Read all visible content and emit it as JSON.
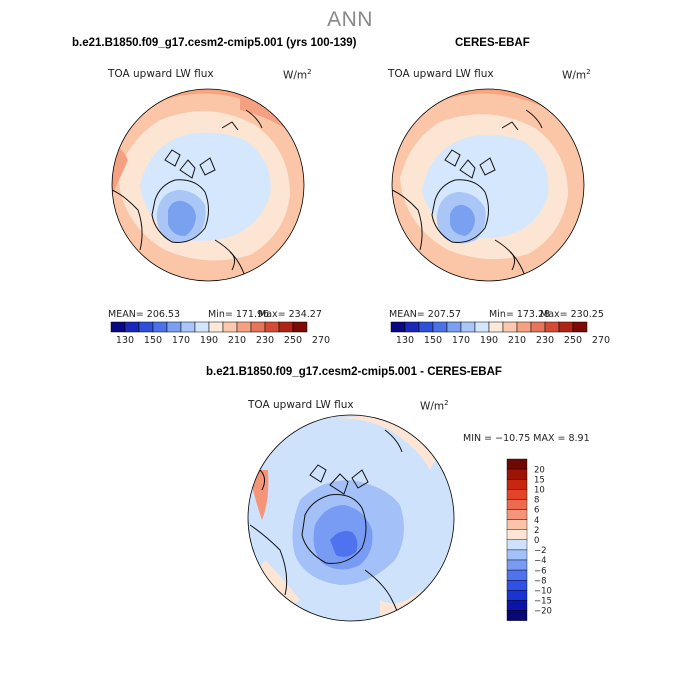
{
  "season": "ANN",
  "palettes": {
    "abs": [
      "#080880",
      "#1a28b8",
      "#2e4fd8",
      "#4c72e8",
      "#7aa0f0",
      "#a9c6f7",
      "#d3e6fc",
      "#fde9da",
      "#fbc7ad",
      "#f5a081",
      "#e8755a",
      "#d44a37",
      "#b02415",
      "#7d0a04"
    ],
    "diff": [
      "#070775",
      "#0a14a8",
      "#1a34d4",
      "#3050e6",
      "#4f72ee",
      "#789bf3",
      "#a3c1f8",
      "#cfe2fb",
      "#fce5d4",
      "#f9c4a7",
      "#f4957a",
      "#ee6a4e",
      "#e4432a",
      "#c8260f",
      "#9d1305",
      "#700802"
    ]
  },
  "panels": {
    "model": {
      "case_title": "b.e21.B1850.f09_g17.cesm2-cmip5.001 (yrs 100-139)",
      "variable": "TOA upward LW flux",
      "units": "W/m",
      "units_exp": "2",
      "mean": "206.53",
      "min": "171.96",
      "max": "234.27",
      "mean_label": "MEAN= 206.53",
      "min_label": "Min= 171.96",
      "max_label": "Max= 234.27"
    },
    "obs": {
      "case_title": "CERES-EBAF",
      "variable": "TOA upward LW flux",
      "units": "W/m",
      "units_exp": "2",
      "mean": "207.57",
      "min": "173.28",
      "max": "230.25",
      "mean_label": "MEAN= 207.57",
      "min_label": "Min= 173.28",
      "max_label": "Max= 230.25"
    },
    "diff": {
      "case_title": "b.e21.B1850.f09_g17.cesm2-cmip5.001 - CERES-EBAF",
      "variable": "TOA upward LW flux",
      "units": "W/m",
      "units_exp": "2",
      "min": "-10.75",
      "max": "8.91",
      "minmax_label": "MIN = −10.75 MAX =    8.91"
    }
  },
  "colorbars": {
    "abs_ticks": [
      "130",
      "150",
      "170",
      "190",
      "210",
      "230",
      "250",
      "270"
    ],
    "diff_ticks": [
      "20",
      "15",
      "10",
      "8",
      "6",
      "4",
      "2",
      "0",
      "−2",
      "−4",
      "−6",
      "−8",
      "−10",
      "−15",
      "−20"
    ]
  }
}
